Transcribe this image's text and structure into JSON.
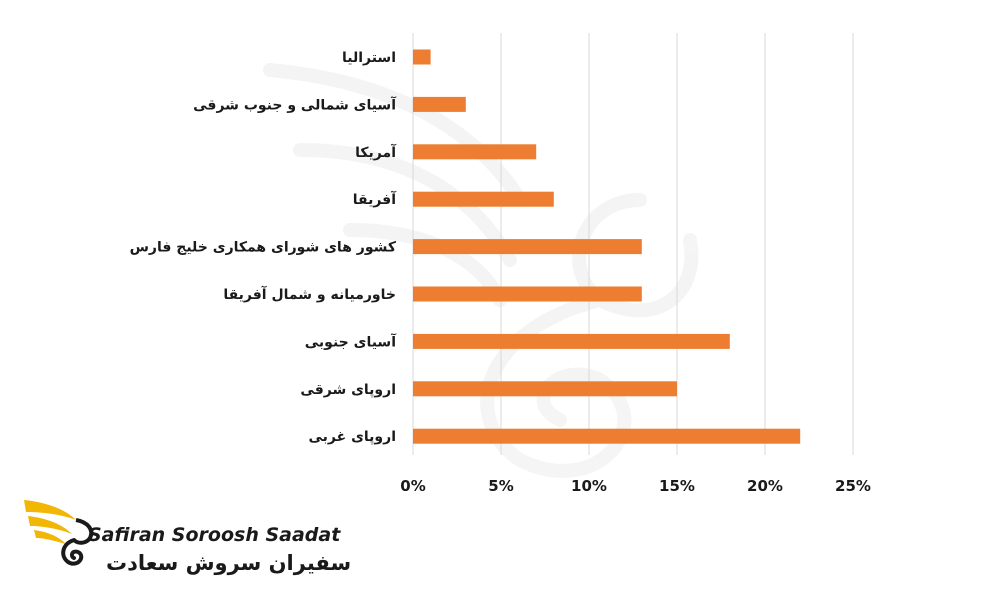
{
  "chart_data": {
    "type": "bar",
    "orientation": "horizontal",
    "categories": [
      "استرالیا",
      "آسیای شمالی و جنوب شرقی",
      "آمریکا",
      "آفریقا",
      "کشور های شورای همکاری خلیج فارس",
      "خاورمیانه و شمال آفریقا",
      "آسیای جنوبی",
      "اروپای شرقی",
      "اروپای غربی"
    ],
    "values": [
      1,
      3,
      7,
      8,
      13,
      13,
      18,
      15,
      22
    ],
    "xlim": [
      0,
      25
    ],
    "xticks": [
      "0%",
      "5%",
      "10%",
      "15%",
      "20%",
      "25%"
    ],
    "xtick_values": [
      0,
      5,
      10,
      15,
      20,
      25
    ],
    "grid": "vertical",
    "bar_color": "#ED7D31"
  },
  "logo": {
    "name_en": "Safiran Soroosh Saadat",
    "name_fa": "سفیران سروش سعادت"
  },
  "colors": {
    "logo_gold": "#F2B705",
    "text": "#1a1a1a"
  }
}
